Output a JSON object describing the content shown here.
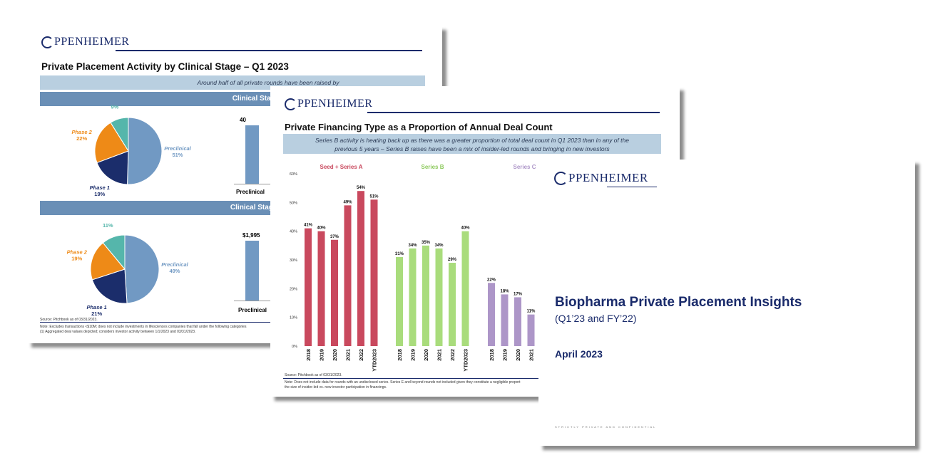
{
  "slide1": {
    "logo": "PPENHEIMER",
    "title": "Private Placement Activity by Clinical Stage – Q1 2023",
    "banner": "Around half of all private rounds have been raised by",
    "section_count": "Clinical Stage % Distribution by D",
    "section_value": "Clinical Stage % Distribution by De",
    "pie_count": [
      {
        "label": "Preclinical",
        "pct": "51%",
        "value": 51,
        "color": "#7199c3"
      },
      {
        "label": "Phase 1",
        "pct": "19%",
        "value": 19,
        "color": "#1b2d6b"
      },
      {
        "label": "Phase 2",
        "pct": "22%",
        "value": 22,
        "color": "#ee8a17"
      },
      {
        "label": "Phase 3",
        "pct": "9%",
        "value": 9,
        "color": "#55b6ab"
      }
    ],
    "pie_value": [
      {
        "label": "Preclinical",
        "pct": "49%",
        "value": 49,
        "color": "#7199c3"
      },
      {
        "label": "Phase 1",
        "pct": "21%",
        "value": 21,
        "color": "#1b2d6b"
      },
      {
        "label": "Phase 2",
        "pct": "19%",
        "value": 19,
        "color": "#ee8a17"
      },
      {
        "label": "Phase 3",
        "pct": "11%",
        "value": 11,
        "color": "#55b6ab"
      }
    ],
    "bar_count": {
      "value_label": "40",
      "category": "Preclinical"
    },
    "bar_value": {
      "value_label": "$1,995",
      "category": "Preclinical"
    },
    "source": "Source: Pitchbook as of 03/31/2023.",
    "note": "Note: Excludes transactions <$10M; does not include investments in lifesciences companies that fall under the following categories",
    "footnote": "(1)     Aggregated deal values depicted; considers investor activity between 1/1/2023 and 03/31/2023."
  },
  "slide2": {
    "logo": "PPENHEIMER",
    "title": "Private Financing Type as a Proportion of Annual Deal Count",
    "banner_line1": "Series B activity is heating back up as there was a greater proportion of total deal count in Q1 2023 than in any of the",
    "banner_line2": "previous 5 years – Series B raises have been a mix of insider-led rounds and bringing in new investors",
    "source": "Source: Pitchbook as of 03/31/2023.",
    "note_line1": "Note: Does not include data for rounds with an undisclosed series. Series E and beyond rounds not included given they constitute a negligible proport",
    "note_line2": "the size of insider-led vs. new investor participation in financings."
  },
  "chart_data": {
    "type": "bar",
    "ylim": [
      0,
      60
    ],
    "y_ticks": [
      "0%",
      "10%",
      "20%",
      "30%",
      "40%",
      "50%",
      "60%"
    ],
    "series": [
      {
        "name": "Seed + Series A",
        "color": "#c9495e",
        "categories": [
          "2018",
          "2019",
          "2020",
          "2021",
          "2022",
          "YTD2023"
        ],
        "values": [
          41,
          40,
          37,
          49,
          54,
          51
        ],
        "labels": [
          "41%",
          "40%",
          "37%",
          "49%",
          "54%",
          "51%"
        ]
      },
      {
        "name": "Series B",
        "color": "#a9dc7c",
        "categories": [
          "2018",
          "2019",
          "2020",
          "2021",
          "2022",
          "YTD2023"
        ],
        "values": [
          31,
          34,
          35,
          34,
          29,
          40
        ],
        "labels": [
          "31%",
          "34%",
          "35%",
          "34%",
          "29%",
          "40%"
        ]
      },
      {
        "name": "Series C",
        "color": "#ad96c8",
        "categories": [
          "2018",
          "2019",
          "2020",
          "2021"
        ],
        "values": [
          22,
          18,
          17,
          11
        ],
        "labels": [
          "22%",
          "18%",
          "17%",
          "11%"
        ]
      }
    ]
  },
  "slide3": {
    "logo": "PPENHEIMER",
    "title": "Biopharma Private Placement Insights",
    "subtitle": "(Q1’23 and FY’22)",
    "date": "April 2023",
    "confidential": "STRICTLY PRIVATE AND CONFIDENTIAL"
  }
}
